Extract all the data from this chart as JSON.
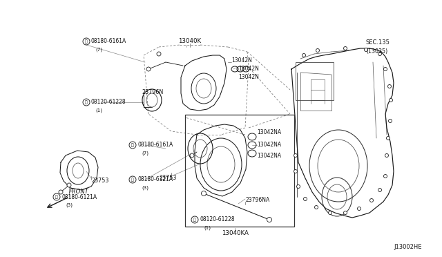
{
  "bg_color": "#ffffff",
  "line_color": "#1a1a1a",
  "gray_color": "#555555",
  "diagram_ref": "J13002HE",
  "sec_ref_1": "SEC.135",
  "sec_ref_2": "(13035)",
  "label_13040K": "13040K",
  "label_13040KA": "13040KA",
  "label_13042N_1": "13042N",
  "label_13042N_2": "13042N",
  "label_13042N_3": "13042N",
  "label_13042NA_1": "13042NA",
  "label_13042NA_2": "13042NA",
  "label_13042NA_3": "13042NA",
  "label_23796N": "23796N",
  "label_23796NA": "23796NA",
  "label_23753_1": "23753",
  "label_23753_2": "23753",
  "label_b1": "08180-6161A",
  "label_b1_sub": "(7)",
  "label_b2": "08120-61228",
  "label_b2_sub": "(1)",
  "label_b3": "08180-6161A",
  "label_b3_sub": "(7)",
  "label_b4": "08120-61228",
  "label_b4_sub": "(1)",
  "label_b5": "08180-6121A",
  "label_b5_sub": "(3)",
  "label_b6": "08180-6121A",
  "label_b6_sub": "(3)",
  "label_front": "FRONT"
}
